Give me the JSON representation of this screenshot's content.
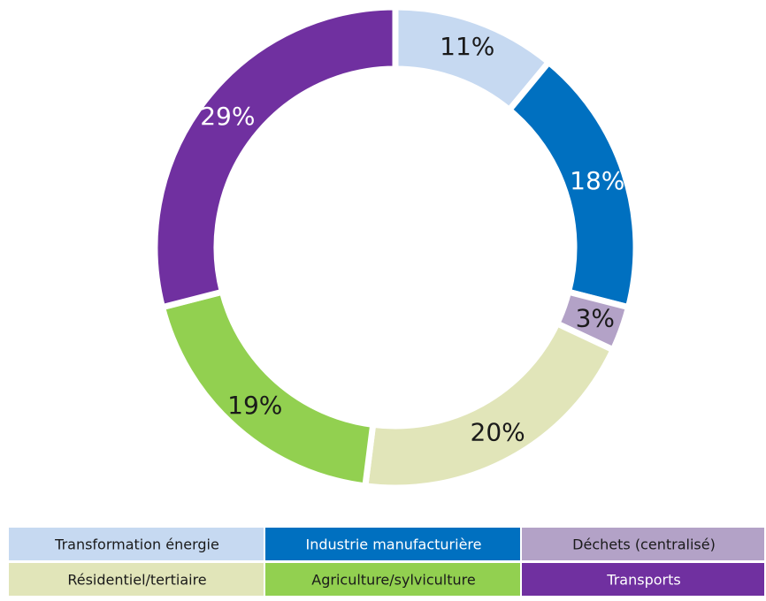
{
  "chart_data": {
    "type": "donut",
    "categories": [
      "Transformation énergie",
      "Industrie manufacturière",
      "Déchets (centralisé)",
      "Résidentiel/tertiaire",
      "Agriculture/sylviculture",
      "Transports"
    ],
    "values": [
      11,
      18,
      3,
      20,
      19,
      29
    ],
    "value_labels": [
      "11%",
      "18%",
      "3%",
      "20%",
      "19%",
      "29%"
    ],
    "colors": [
      "#c6d9f1",
      "#0070c0",
      "#b3a2c7",
      "#e1e5b9",
      "#92d050",
      "#7030a0"
    ],
    "legend": "bottom"
  }
}
